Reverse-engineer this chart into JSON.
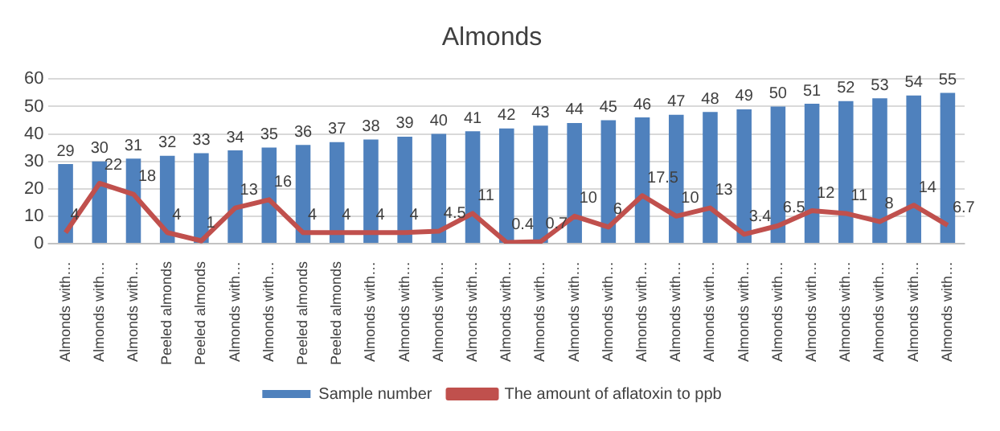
{
  "chart_data": {
    "type": "bar",
    "title": "Almonds",
    "categories": [
      "Almonds with…",
      "Almonds with…",
      "Almonds with…",
      "Peeled almonds",
      "Peeled almonds",
      "Almonds with…",
      "Almonds with…",
      "Peeled almonds",
      "Peeled almonds",
      "Almonds with…",
      "Almonds with…",
      "Almonds with…",
      "Almonds with…",
      "Almonds with…",
      "Almonds with…",
      "Almonds with…",
      "Almonds with…",
      "Almonds with…",
      "Almonds with…",
      "Almonds with…",
      "Almonds with…",
      "Almonds with…",
      "Almonds with…",
      "Almonds with…",
      "Almonds with…",
      "Almonds with…",
      "Almonds with…"
    ],
    "series": [
      {
        "name": "Sample number",
        "color": "#4f81bd",
        "values": [
          29,
          30,
          31,
          32,
          33,
          34,
          35,
          36,
          37,
          38,
          39,
          40,
          41,
          42,
          43,
          44,
          45,
          46,
          47,
          48,
          49,
          50,
          51,
          52,
          53,
          54,
          55
        ]
      },
      {
        "name": "The amount of aflatoxin to ppb",
        "type": "line",
        "color": "#c0504d",
        "values": [
          4,
          22,
          18,
          4,
          1,
          13,
          16,
          4,
          4,
          4,
          4,
          4.5,
          11,
          0.4,
          0.7,
          10,
          6,
          17.5,
          10,
          13,
          3.4,
          6.5,
          12,
          11,
          8,
          14,
          6.7
        ]
      }
    ],
    "ylim": [
      0,
      60
    ],
    "yticks": [
      0,
      10,
      20,
      30,
      40,
      50,
      60
    ],
    "grid": "y",
    "legend": "bottom",
    "data_labels": true,
    "marker": "none"
  }
}
